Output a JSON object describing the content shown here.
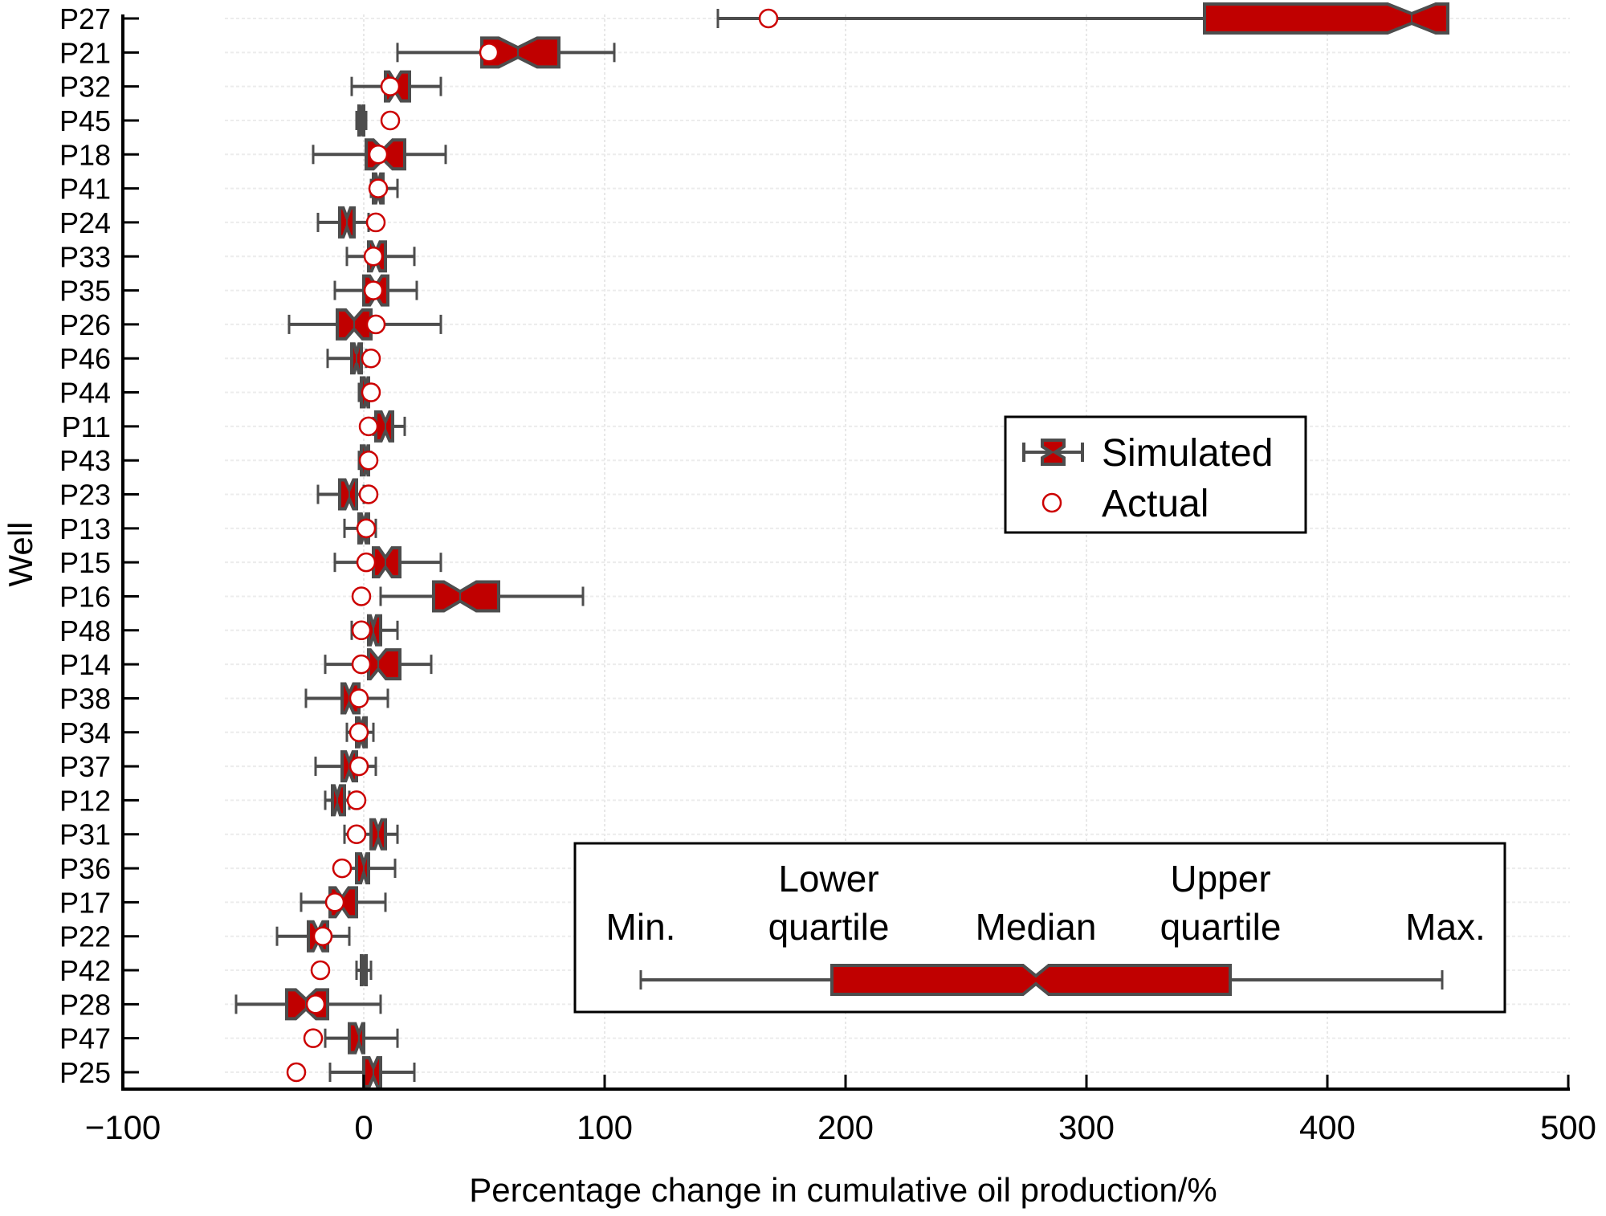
{
  "chart_data": {
    "type": "boxplot",
    "title": "",
    "xlabel": "Percentage change in cumulative oil production/%",
    "ylabel": "Well",
    "xlim": [
      -100,
      500
    ],
    "xticks": [
      -100,
      0,
      100,
      200,
      300,
      400,
      500
    ],
    "xtick_labels": [
      "−100",
      "0",
      "100",
      "200",
      "300",
      "400",
      "500"
    ],
    "grid": "dotted horizontal and vertical",
    "colors": {
      "box_fill": "#c00000",
      "box_edge": "#4d4d4d",
      "actual_marker": "#cc0000"
    },
    "legend": {
      "position": "center-right",
      "entries": [
        {
          "label": "Simulated",
          "marker": "notched-box"
        },
        {
          "label": "Actual",
          "marker": "open-circle"
        }
      ]
    },
    "explanation_box": {
      "position": "bottom-right",
      "labels": {
        "min": "Min.",
        "lower_quartile": "Lower quartile",
        "median": "Median",
        "upper_quartile": "Upper quartile",
        "max": "Max."
      }
    },
    "wells": [
      {
        "name": "P27",
        "min": 147,
        "q1": 349,
        "median": 435,
        "q3": 450,
        "max": 450,
        "actual": 168
      },
      {
        "name": "P21",
        "min": 14,
        "q1": 49,
        "median": 64,
        "q3": 81,
        "max": 104,
        "actual": 52
      },
      {
        "name": "P32",
        "min": -5,
        "q1": 9,
        "median": 13,
        "q3": 19,
        "max": 32,
        "actual": 11
      },
      {
        "name": "P45",
        "min": -3,
        "q1": -2,
        "median": -1,
        "q3": 0,
        "max": 1,
        "actual": 11
      },
      {
        "name": "P18",
        "min": -21,
        "q1": 1,
        "median": 8,
        "q3": 17,
        "max": 34,
        "actual": 6
      },
      {
        "name": "P41",
        "min": 3,
        "q1": 4,
        "median": 6,
        "q3": 8,
        "max": 14,
        "actual": 6
      },
      {
        "name": "P24",
        "min": -19,
        "q1": -10,
        "median": -7,
        "q3": -4,
        "max": 2,
        "actual": 5
      },
      {
        "name": "P33",
        "min": -7,
        "q1": 2,
        "median": 5,
        "q3": 9,
        "max": 21,
        "actual": 4
      },
      {
        "name": "P35",
        "min": -12,
        "q1": 0,
        "median": 5,
        "q3": 10,
        "max": 22,
        "actual": 4
      },
      {
        "name": "P26",
        "min": -31,
        "q1": -11,
        "median": -4,
        "q3": 3,
        "max": 32,
        "actual": 5
      },
      {
        "name": "P46",
        "min": -15,
        "q1": -5,
        "median": -3,
        "q3": -1,
        "max": 1,
        "actual": 3
      },
      {
        "name": "P44",
        "min": -2,
        "q1": -1,
        "median": 1,
        "q3": 2,
        "max": 3,
        "actual": 3
      },
      {
        "name": "P11",
        "min": 4,
        "q1": 5,
        "median": 9,
        "q3": 12,
        "max": 17,
        "actual": 2
      },
      {
        "name": "P43",
        "min": -2,
        "q1": -1,
        "median": 1,
        "q3": 2,
        "max": 3,
        "actual": 2
      },
      {
        "name": "P23",
        "min": -19,
        "q1": -10,
        "median": -6,
        "q3": -3,
        "max": 0,
        "actual": 2
      },
      {
        "name": "P13",
        "min": -8,
        "q1": -2,
        "median": 0,
        "q3": 2,
        "max": 5,
        "actual": 1
      },
      {
        "name": "P15",
        "min": -12,
        "q1": 4,
        "median": 9,
        "q3": 15,
        "max": 32,
        "actual": 1
      },
      {
        "name": "P16",
        "min": 7,
        "q1": 29,
        "median": 40,
        "q3": 56,
        "max": 91,
        "actual": -1
      },
      {
        "name": "P48",
        "min": -5,
        "q1": 2,
        "median": 4,
        "q3": 7,
        "max": 14,
        "actual": -1
      },
      {
        "name": "P14",
        "min": -16,
        "q1": 2,
        "median": 6,
        "q3": 15,
        "max": 28,
        "actual": -1
      },
      {
        "name": "P38",
        "min": -24,
        "q1": -9,
        "median": -6,
        "q3": -2,
        "max": 10,
        "actual": -2
      },
      {
        "name": "P34",
        "min": -7,
        "q1": -3,
        "median": -1,
        "q3": 1,
        "max": 4,
        "actual": -2
      },
      {
        "name": "P37",
        "min": -20,
        "q1": -9,
        "median": -6,
        "q3": -3,
        "max": 5,
        "actual": -2
      },
      {
        "name": "P12",
        "min": -16,
        "q1": -13,
        "median": -11,
        "q3": -8,
        "max": -6,
        "actual": -3
      },
      {
        "name": "P31",
        "min": -8,
        "q1": 3,
        "median": 6,
        "q3": 9,
        "max": 14,
        "actual": -3
      },
      {
        "name": "P36",
        "min": -9,
        "q1": -3,
        "median": 0,
        "q3": 2,
        "max": 13,
        "actual": -9
      },
      {
        "name": "P17",
        "min": -26,
        "q1": -14,
        "median": -9,
        "q3": -3,
        "max": 9,
        "actual": -12
      },
      {
        "name": "P22",
        "min": -36,
        "q1": -23,
        "median": -19,
        "q3": -15,
        "max": -6,
        "actual": -17
      },
      {
        "name": "P42",
        "min": -3,
        "q1": -1,
        "median": 0,
        "q3": 1,
        "max": 3,
        "actual": -18
      },
      {
        "name": "P28",
        "min": -53,
        "q1": -32,
        "median": -24,
        "q3": -15,
        "max": 7,
        "actual": -20
      },
      {
        "name": "P47",
        "min": -16,
        "q1": -6,
        "median": -2,
        "q3": 0,
        "max": 14,
        "actual": -21
      },
      {
        "name": "P25",
        "min": -14,
        "q1": 0,
        "median": 4,
        "q3": 7,
        "max": 21,
        "actual": -28
      }
    ]
  }
}
